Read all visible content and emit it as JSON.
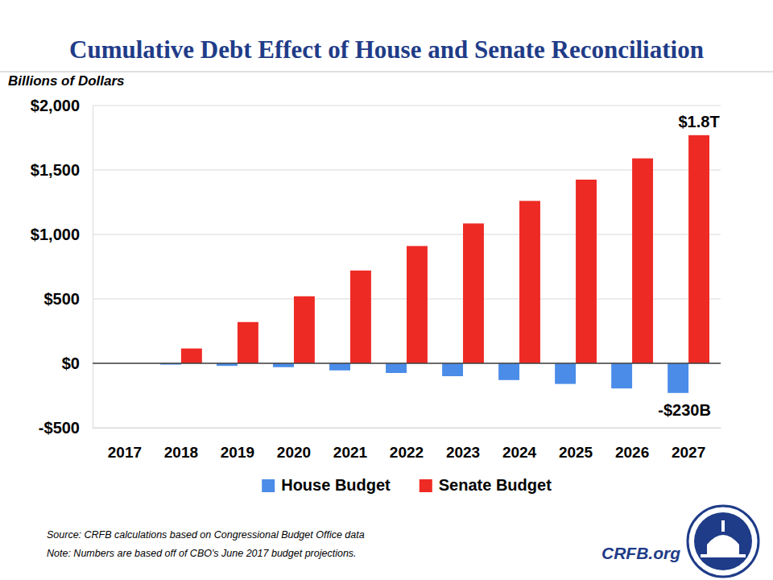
{
  "chart_data": {
    "type": "bar",
    "title": "Cumulative Debt Effect of House and Senate Reconciliation",
    "y_label": "Billions of Dollars",
    "categories": [
      "2017",
      "2018",
      "2019",
      "2020",
      "2021",
      "2022",
      "2023",
      "2024",
      "2025",
      "2026",
      "2027"
    ],
    "series": [
      {
        "name": "House Budget",
        "color": "#4a8ce8",
        "values": [
          0,
          -10,
          -20,
          -30,
          -55,
          -75,
          -100,
          -130,
          -160,
          -195,
          -230
        ]
      },
      {
        "name": "Senate Budget",
        "color": "#ee2a24",
        "values": [
          0,
          115,
          320,
          520,
          720,
          910,
          1085,
          1260,
          1425,
          1590,
          1770
        ]
      }
    ],
    "ylim": [
      -500,
      2000
    ],
    "yticks": [
      {
        "value": -500,
        "label": "-$500"
      },
      {
        "value": 0,
        "label": "$0"
      },
      {
        "value": 500,
        "label": "$500"
      },
      {
        "value": 1000,
        "label": "$1,000"
      },
      {
        "value": 1500,
        "label": "$1,500"
      },
      {
        "value": 2000,
        "label": "$2,000"
      }
    ],
    "grid": true,
    "legend": "bottom",
    "annotations": [
      {
        "text": "$1.8T",
        "x": "2027",
        "y": 1770,
        "series": "Senate Budget"
      },
      {
        "text": "-$230B",
        "x": "2027",
        "y": -230,
        "series": "House Budget"
      }
    ],
    "source": "Source: CRFB calculations based on Congressional Budget Office data",
    "note": "Note: Numbers are based off of CBO's June 2017 budget projections.",
    "brand": "CRFB.org"
  }
}
